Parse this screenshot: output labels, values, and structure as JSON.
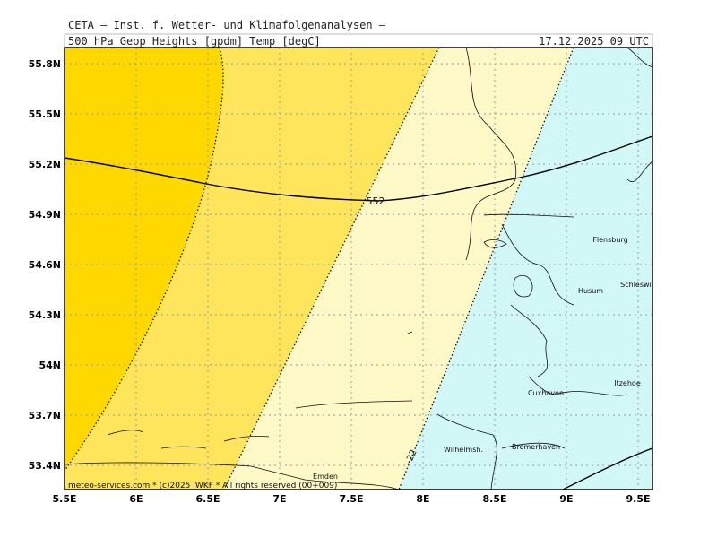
{
  "header": {
    "institute": "CETA — Inst. f. Wetter- und Klimafolgenanalysen —",
    "product": "500_hPa_Geop_Heights_[gpdm]_Temp_[degC]",
    "valid_time": "17.12.2025 09 UTC"
  },
  "map": {
    "lon_ticks": [
      {
        "value": 5.5,
        "label": "5.5E"
      },
      {
        "value": 6,
        "label": "6E"
      },
      {
        "value": 6.5,
        "label": "6.5E"
      },
      {
        "value": 7,
        "label": "7E"
      },
      {
        "value": 7.5,
        "label": "7.5E"
      },
      {
        "value": 8,
        "label": "8E"
      },
      {
        "value": 8.5,
        "label": "8.5E"
      },
      {
        "value": 9,
        "label": "9E"
      },
      {
        "value": 9.5,
        "label": "9.5E"
      }
    ],
    "lat_ticks": [
      {
        "value": 55.8,
        "label": "55.8N"
      },
      {
        "value": 55.5,
        "label": "55.5N"
      },
      {
        "value": 55.2,
        "label": "55.2N"
      },
      {
        "value": 54.9,
        "label": "54.9N"
      },
      {
        "value": 54.6,
        "label": "54.6N"
      },
      {
        "value": 54.3,
        "label": "54.3N"
      },
      {
        "value": 54,
        "label": "54N"
      },
      {
        "value": 53.7,
        "label": "53.7N"
      },
      {
        "value": 53.4,
        "label": "53.4N"
      }
    ],
    "places": [
      "Flensburg",
      "Husum",
      "Schleswig",
      "Itzehoe",
      "Cuxhaven",
      "Bremerhaven",
      "Wilhelmsh.",
      "Emden"
    ],
    "contour_labels": [
      "552",
      "-22"
    ]
  },
  "footer": "meteo-services.com * (c)2025 IWKF * All rights reserved (00+009)"
}
